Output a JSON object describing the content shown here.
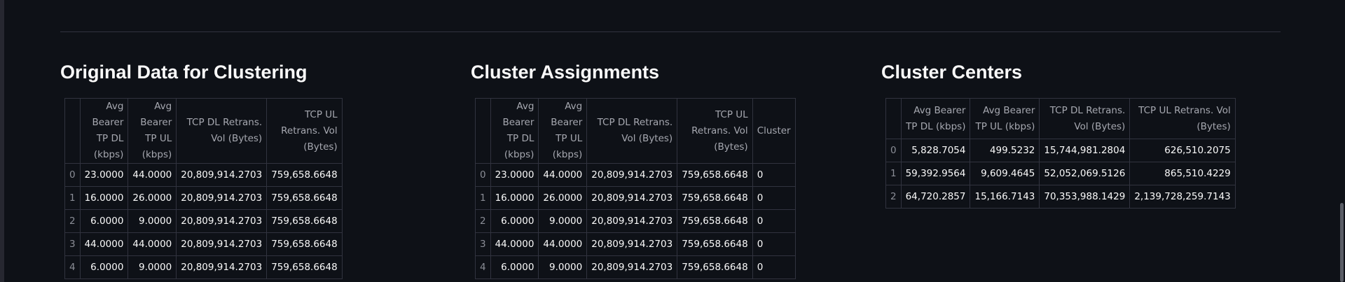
{
  "sections": [
    {
      "title": "Original Data for Clustering",
      "columns": [
        "Avg Bearer TP DL (kbps)",
        "Avg Bearer TP UL (kbps)",
        "TCP DL Retrans. Vol (Bytes)",
        "TCP UL Retrans. Vol (Bytes)"
      ],
      "rows": [
        [
          "0",
          "23.0000",
          "44.0000",
          "20,809,914.2703",
          "759,658.6648"
        ],
        [
          "1",
          "16.0000",
          "26.0000",
          "20,809,914.2703",
          "759,658.6648"
        ],
        [
          "2",
          "6.0000",
          "9.0000",
          "20,809,914.2703",
          "759,658.6648"
        ],
        [
          "3",
          "44.0000",
          "44.0000",
          "20,809,914.2703",
          "759,658.6648"
        ],
        [
          "4",
          "6.0000",
          "9.0000",
          "20,809,914.2703",
          "759,658.6648"
        ]
      ]
    },
    {
      "title": "Cluster Assignments",
      "columns": [
        "Avg Bearer TP DL (kbps)",
        "Avg Bearer TP UL (kbps)",
        "TCP DL Retrans. Vol (Bytes)",
        "TCP UL Retrans. Vol (Bytes)",
        "Cluster"
      ],
      "rows": [
        [
          "0",
          "23.0000",
          "44.0000",
          "20,809,914.2703",
          "759,658.6648",
          "0"
        ],
        [
          "1",
          "16.0000",
          "26.0000",
          "20,809,914.2703",
          "759,658.6648",
          "0"
        ],
        [
          "2",
          "6.0000",
          "9.0000",
          "20,809,914.2703",
          "759,658.6648",
          "0"
        ],
        [
          "3",
          "44.0000",
          "44.0000",
          "20,809,914.2703",
          "759,658.6648",
          "0"
        ],
        [
          "4",
          "6.0000",
          "9.0000",
          "20,809,914.2703",
          "759,658.6648",
          "0"
        ]
      ]
    },
    {
      "title": "Cluster Centers",
      "columns": [
        "Avg Bearer TP DL (kbps)",
        "Avg Bearer TP UL (kbps)",
        "TCP DL Retrans. Vol (Bytes)",
        "TCP UL Retrans. Vol (Bytes)"
      ],
      "rows": [
        [
          "0",
          "5,828.7054",
          "499.5232",
          "15,744,981.2804",
          "626,510.2075"
        ],
        [
          "1",
          "59,392.9564",
          "9,609.4645",
          "52,052,069.5126",
          "865,510.4229"
        ],
        [
          "2",
          "64,720.2857",
          "15,166.7143",
          "70,353,988.1429",
          "2,139,728,259.7143"
        ]
      ]
    }
  ]
}
